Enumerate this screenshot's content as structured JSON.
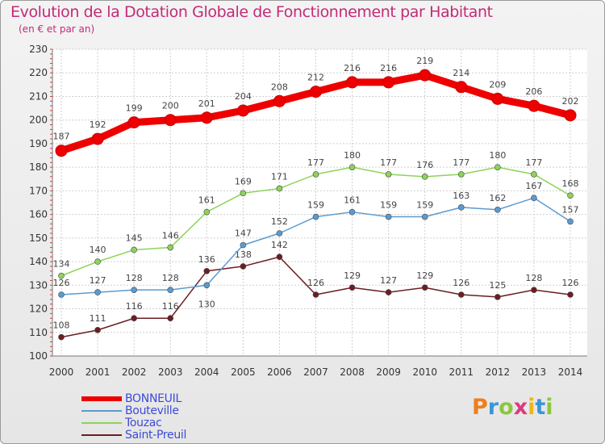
{
  "title": "Evolution de la Dotation Globale de Fonctionnement par Habitant",
  "subtitle": "(en € et par an)",
  "logo": [
    "P",
    "r",
    "o",
    "x",
    "i",
    "t",
    "i"
  ],
  "chart_data": {
    "type": "line",
    "title": "Evolution de la Dotation Globale de Fonctionnement par Habitant",
    "subtitle": "(en € et par an)",
    "x": [
      "2000",
      "2001",
      "2002",
      "2003",
      "2004",
      "2005",
      "2006",
      "2007",
      "2008",
      "2009",
      "2010",
      "2011",
      "2012",
      "2013",
      "2014"
    ],
    "ylim": [
      100,
      230
    ],
    "yticks": [
      "100",
      "110",
      "120",
      "130",
      "140",
      "150",
      "160",
      "170",
      "180",
      "190",
      "200",
      "210",
      "220",
      "230"
    ],
    "grid": true,
    "legend": "bottom-left",
    "series": [
      {
        "name": "BONNEUIL",
        "color": "#ee0000",
        "values": [
          187,
          192,
          199,
          200,
          201,
          204,
          208,
          212,
          216,
          216,
          219,
          214,
          209,
          206,
          202
        ]
      },
      {
        "name": "Bouteville",
        "color": "#5b9bd0",
        "values": [
          126,
          127,
          128,
          128,
          130,
          147,
          152,
          159,
          161,
          159,
          159,
          163,
          162,
          167,
          157
        ]
      },
      {
        "name": "Touzac",
        "color": "#8ed35a",
        "values": [
          134,
          140,
          145,
          146,
          161,
          169,
          171,
          177,
          180,
          177,
          176,
          177,
          180,
          177,
          168
        ]
      },
      {
        "name": "Saint-Preuil",
        "color": "#6b1e22",
        "values": [
          108,
          111,
          116,
          116,
          136,
          138,
          142,
          126,
          129,
          127,
          129,
          126,
          125,
          128,
          126
        ]
      }
    ]
  }
}
